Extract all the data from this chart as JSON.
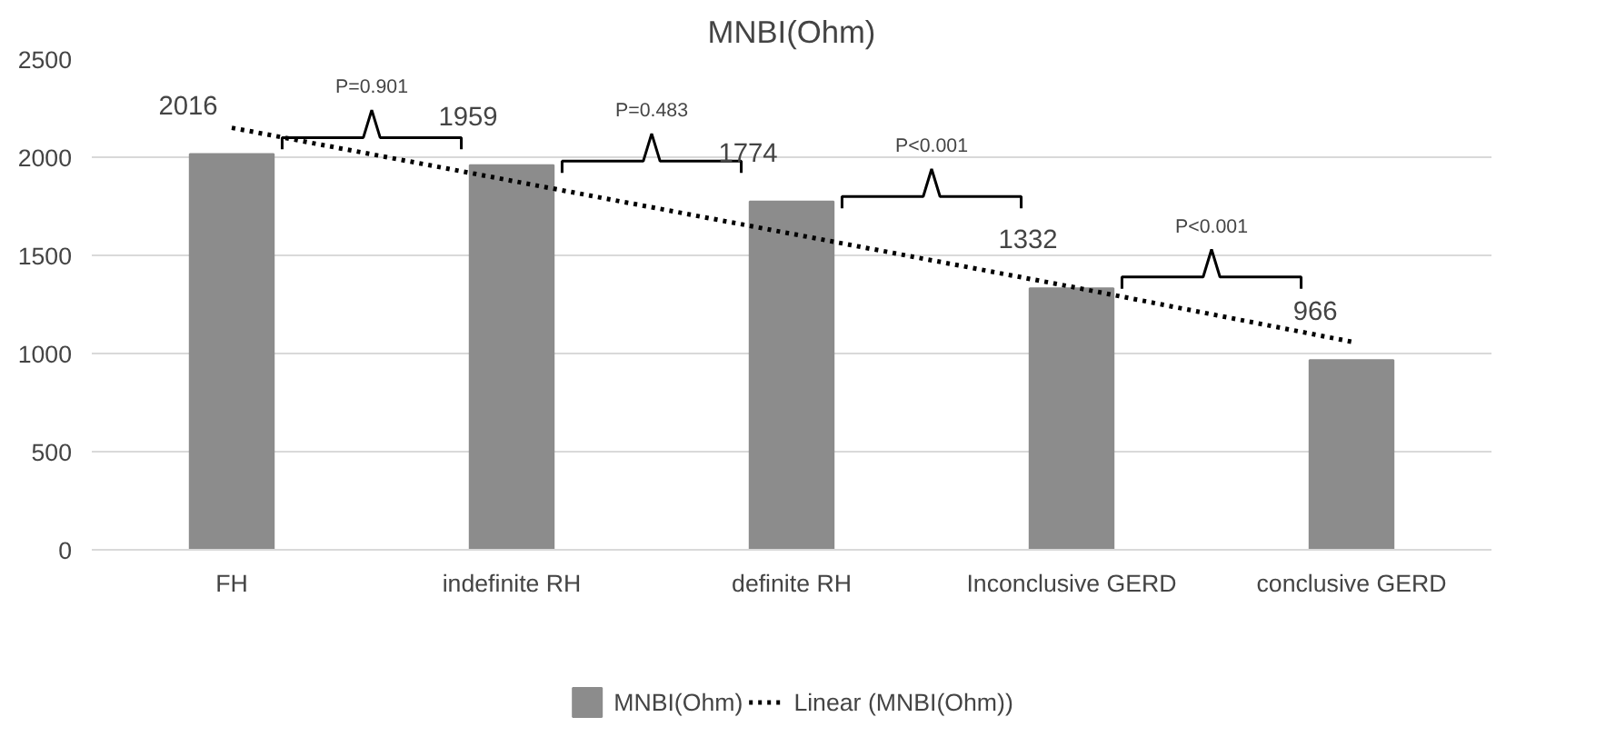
{
  "chart_data": {
    "type": "bar",
    "title": "MNBI(Ohm)",
    "categories": [
      "FH",
      "indefinite RH",
      "definite RH",
      "Inconclusive GERD",
      "conclusive GERD"
    ],
    "series": [
      {
        "name": "MNBI(Ohm)",
        "color": "#8c8c8c",
        "values": [
          2016,
          1959,
          1774,
          1332,
          966
        ],
        "value_labels": [
          "2016",
          "1959",
          "1774",
          "1332",
          "966"
        ]
      },
      {
        "name": "Linear (MNBI(Ohm))",
        "type": "line",
        "line_style": "dotted",
        "color": "#000000",
        "values": [
          2150,
          1880,
          1610,
          1340,
          1060
        ]
      }
    ],
    "ylim": [
      0,
      2500
    ],
    "yticks": [
      0,
      500,
      1000,
      1500,
      2000,
      2500
    ],
    "grid": "y",
    "legend": "bottom",
    "annotations": [
      "P=0.901",
      "P=0.483",
      "P<0.001",
      "P<0.001"
    ]
  }
}
